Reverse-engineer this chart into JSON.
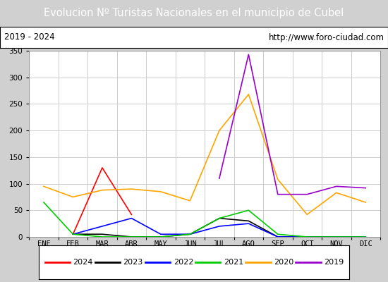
{
  "title": "Evolucion Nº Turistas Nacionales en el municipio de Cubel",
  "subtitle_left": "2019 - 2024",
  "subtitle_right": "http://www.foro-ciudad.com",
  "title_bg": "#4472c4",
  "title_color": "white",
  "months": [
    "ENE",
    "FEB",
    "MAR",
    "ABR",
    "MAY",
    "JUN",
    "JUL",
    "AGO",
    "SEP",
    "OCT",
    "NOV",
    "DIC"
  ],
  "ylim": [
    0,
    350
  ],
  "yticks": [
    0,
    50,
    100,
    150,
    200,
    250,
    300,
    350
  ],
  "series": {
    "2024": {
      "color": "red",
      "values": [
        null,
        5,
        130,
        42,
        null,
        null,
        null,
        null,
        null,
        null,
        null,
        null
      ]
    },
    "2023": {
      "color": "black",
      "values": [
        null,
        5,
        5,
        0,
        0,
        5,
        35,
        30,
        0,
        0,
        0,
        0
      ]
    },
    "2022": {
      "color": "blue",
      "values": [
        null,
        5,
        20,
        35,
        5,
        5,
        20,
        25,
        0,
        0,
        0,
        0
      ]
    },
    "2021": {
      "color": "#00cc00",
      "values": [
        65,
        5,
        0,
        0,
        0,
        5,
        35,
        50,
        5,
        0,
        0,
        0
      ]
    },
    "2020": {
      "color": "orange",
      "values": [
        95,
        75,
        88,
        90,
        85,
        68,
        200,
        268,
        108,
        42,
        83,
        65
      ]
    },
    "2019": {
      "color": "#9900cc",
      "values": [
        null,
        null,
        null,
        null,
        null,
        null,
        110,
        343,
        80,
        80,
        95,
        92
      ]
    }
  },
  "legend_order": [
    "2024",
    "2023",
    "2022",
    "2021",
    "2020",
    "2019"
  ],
  "grid_color": "#cccccc",
  "outer_bg": "#d0d0d0",
  "plot_bg": "white",
  "subtitle_bg": "white"
}
